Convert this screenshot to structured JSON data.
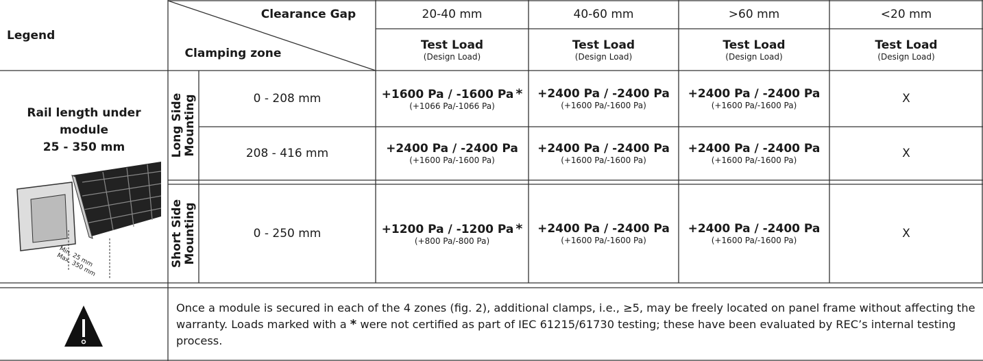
{
  "header": {
    "legend": "Legend",
    "clearance_gap": "Clearance Gap",
    "clamping_zone": "Clamping zone",
    "columns": [
      {
        "gap": "20-40 mm",
        "test_load": "Test Load",
        "design_load": "(Design Load)"
      },
      {
        "gap": "40-60 mm",
        "test_load": "Test Load",
        "design_load": "(Design Load)"
      },
      {
        "gap": ">60 mm",
        "test_load": "Test Load",
        "design_load": "(Design Load)"
      },
      {
        "gap": "<20 mm",
        "test_load": "Test Load",
        "design_load": "(Design Load)"
      }
    ]
  },
  "legend": {
    "lines": [
      "Rail length under",
      "module",
      "25 - 350 mm"
    ],
    "min_label": "Min. 25 mm",
    "max_label": "Max. 350 mm"
  },
  "groups": [
    {
      "name": "Long Side Mounting",
      "rows": [
        {
          "zone": "0 - 208 mm",
          "cells": [
            {
              "load": "+1600 Pa / -1600 Pa",
              "star": "*",
              "design": "(+1066 Pa/-1066 Pa)"
            },
            {
              "load": "+2400 Pa / -2400 Pa",
              "design": "(+1600 Pa/-1600 Pa)"
            },
            {
              "load": "+2400 Pa / -2400 Pa",
              "design": "(+1600 Pa/-1600 Pa)"
            },
            {
              "load": "X"
            }
          ]
        },
        {
          "zone": "208 - 416 mm",
          "cells": [
            {
              "load": "+2400 Pa / -2400 Pa",
              "design": "(+1600 Pa/-1600 Pa)"
            },
            {
              "load": "+2400 Pa / -2400 Pa",
              "design": "(+1600 Pa/-1600 Pa)"
            },
            {
              "load": "+2400 Pa / -2400 Pa",
              "design": "(+1600 Pa/-1600 Pa)"
            },
            {
              "load": "X"
            }
          ]
        }
      ]
    },
    {
      "name": "Short Side Mounting",
      "rows": [
        {
          "zone": "0 - 250 mm",
          "cells": [
            {
              "load": "+1200 Pa / -1200 Pa",
              "star": "*",
              "design": "(+800 Pa/-800 Pa)"
            },
            {
              "load": "+2400 Pa / -2400 Pa",
              "design": "(+1600 Pa/-1600 Pa)"
            },
            {
              "load": "+2400 Pa / -2400 Pa",
              "design": "(+1600 Pa/-1600 Pa)"
            },
            {
              "load": "X"
            }
          ]
        }
      ]
    }
  ],
  "note": {
    "parts": [
      "Once a module is secured in each of the 4 zones (fig. 2), additional clamps, i.e., ≥5, may be freely located on panel frame without affecting the warranty. Loads marked with a ",
      "*",
      " were not certified as part of IEC 61215/61730 testing; these have been evaluated by REC’s internal testing process."
    ]
  }
}
